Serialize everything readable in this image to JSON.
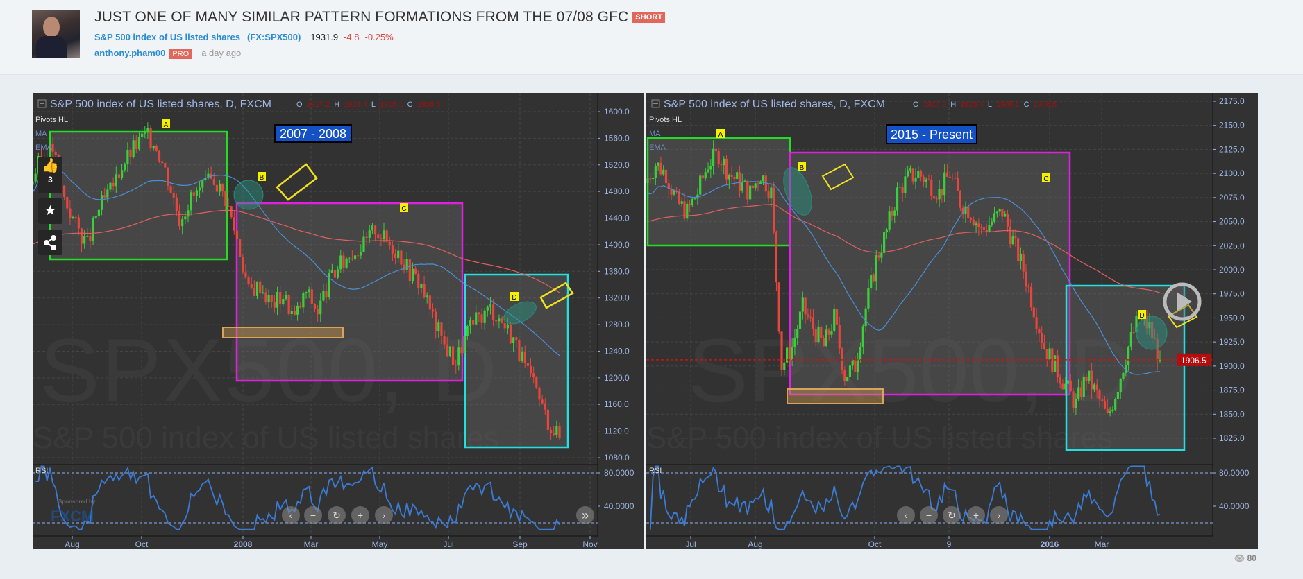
{
  "header": {
    "title": "JUST ONE OF MANY SIMILAR PATTERN FORMATIONS FROM THE 07/08 GFC",
    "badge": "SHORT",
    "symbol_name": "S&P 500 index of US listed shares",
    "symbol_code": "(FX:SPX500)",
    "price": "1931.9",
    "change": "-4.8",
    "change_pct": "-0.25%",
    "author": "anthony.pham00",
    "author_badge": "PRO",
    "time_ago": "a day ago"
  },
  "social": {
    "like_count": "3",
    "views": "80"
  },
  "colors": {
    "up": "#3ccf3c",
    "down": "#e8453c",
    "ma": "#4a90d9",
    "ema": "#e06060",
    "rsi": "#3a7bd5",
    "accent": "#2a8bd4"
  },
  "charts": [
    {
      "legend": "S&P 500 index of US listed shares, D, FXCM",
      "ohlc": {
        "o_label": "O",
        "o": "1917.2",
        "h_label": "H",
        "h": "1923.4",
        "l_label": "L",
        "l": "1905.1",
        "c_label": "C",
        "c": "1906.5"
      },
      "indicators": [
        "Pivots HL",
        "MA",
        "EMA"
      ],
      "watermark_symbol": "SPX500, D",
      "watermark_name": "S&P 500 index of US listed shares",
      "period_label": "2007 - 2008",
      "pattern_labels": [
        "A",
        "B",
        "C",
        "D"
      ],
      "rsi_label": "RSI",
      "sponsor_text": "Sponsored by",
      "sponsor_logo": "FXCM",
      "nav_icons": [
        "chevron-left",
        "minus",
        "reset",
        "plus",
        "chevron-right"
      ],
      "nav_glyphs": [
        "‹",
        "−",
        "↻",
        "+",
        "›"
      ],
      "scroll_end_glyph": "»"
    },
    {
      "legend": "S&P 500 index of US listed shares, D, FXCM",
      "ohlc": {
        "o_label": "O",
        "o": "1917.2",
        "h_label": "H",
        "h": "1923.4",
        "l_label": "L",
        "l": "1905.1",
        "c_label": "C",
        "c": "1906.5"
      },
      "indicators": [
        "Pivots HL",
        "MA",
        "EMA"
      ],
      "watermark_symbol": "SPX500, D",
      "watermark_name": "S&P 500 index of US listed shares",
      "period_label": "2015 - Present",
      "pattern_labels": [
        "A",
        "B",
        "C",
        "D"
      ],
      "rsi_label": "RSI",
      "last_price_label": "1906.5",
      "nav_icons": [
        "chevron-left",
        "minus",
        "reset",
        "plus",
        "chevron-right"
      ],
      "nav_glyphs": [
        "‹",
        "−",
        "↻",
        "+",
        "›"
      ]
    }
  ],
  "chart_data": [
    {
      "type": "candlestick",
      "title": "S&P 500 index of US listed shares, D, FXCM",
      "x_ticks": [
        "Aug",
        "Oct",
        "2008",
        "Mar",
        "May",
        "Jul",
        "Sep",
        "Nov"
      ],
      "y_ticks": [
        "1600.0",
        "1560.0",
        "1520.0",
        "1480.0",
        "1440.0",
        "1400.0",
        "1360.0",
        "1320.0",
        "1280.0",
        "1240.0",
        "1200.0",
        "1160.0",
        "1120.0",
        "1080.0"
      ],
      "ylim": [
        1080,
        1600
      ],
      "closes": [
        1490,
        1530,
        1545,
        1470,
        1430,
        1400,
        1455,
        1480,
        1520,
        1545,
        1565,
        1550,
        1500,
        1440,
        1470,
        1485,
        1500,
        1470,
        1410,
        1330,
        1340,
        1310,
        1325,
        1290,
        1330,
        1300,
        1345,
        1370,
        1390,
        1400,
        1425,
        1405,
        1390,
        1360,
        1340,
        1290,
        1250,
        1225,
        1270,
        1290,
        1305,
        1285,
        1260,
        1215,
        1180,
        1135,
        1110
      ],
      "rsi": {
        "levels": [
          80,
          20
        ],
        "y_ticks": [
          "80.0000",
          "40.0000"
        ]
      }
    },
    {
      "type": "candlestick",
      "title": "S&P 500 index of US listed shares, D, FXCM",
      "x_ticks": [
        "Jul",
        "Aug",
        "Oct",
        "9",
        "2016",
        "Mar"
      ],
      "y_ticks": [
        "2175.0",
        "2150.0",
        "2125.0",
        "2100.0",
        "2075.0",
        "2050.0",
        "2025.0",
        "2000.0",
        "1975.0",
        "1950.0",
        "1925.0",
        "1900.0",
        "1875.0",
        "1850.0",
        "1825.0"
      ],
      "ylim": [
        1810,
        2185
      ],
      "last_price": 1906.5,
      "closes": [
        2090,
        2110,
        2100,
        2070,
        2060,
        2080,
        2110,
        2120,
        2100,
        2090,
        2080,
        2100,
        2080,
        1900,
        1920,
        1960,
        1940,
        1920,
        1950,
        1890,
        1900,
        1960,
        2010,
        2040,
        2080,
        2095,
        2100,
        2090,
        2080,
        2100,
        2070,
        2060,
        2040,
        2050,
        2060,
        2030,
        2000,
        1960,
        1920,
        1900,
        1880,
        1860,
        1890,
        1870,
        1845,
        1880,
        1920,
        1950,
        1940,
        1906.5
      ],
      "rsi": {
        "levels": [
          80,
          20
        ],
        "y_ticks": [
          "80.0000",
          "40.0000"
        ]
      }
    }
  ]
}
